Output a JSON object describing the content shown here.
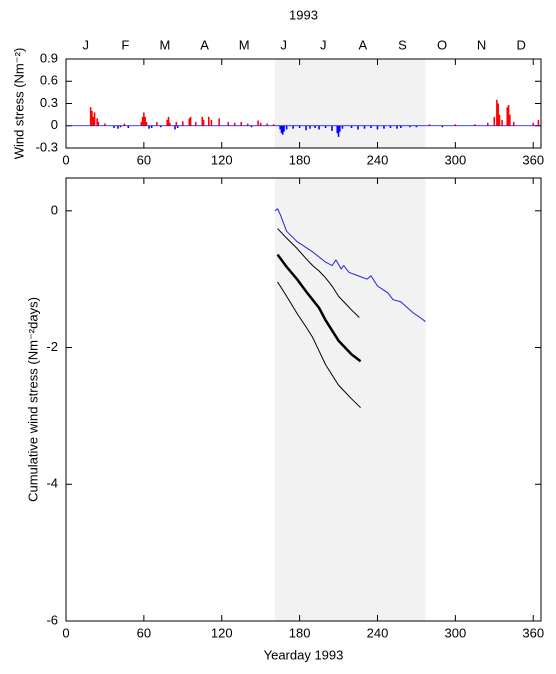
{
  "chart_data": [
    {
      "type": "bar",
      "title": "1993",
      "categories": [
        "J",
        "F",
        "M",
        "A",
        "M",
        "J",
        "J",
        "A",
        "S",
        "O",
        "N",
        "D"
      ],
      "ylabel": "Wind stress (Nm⁻²)",
      "xlim": [
        0,
        366
      ],
      "xticks": [
        0,
        60,
        120,
        180,
        240,
        300,
        360
      ],
      "ylim": [
        -0.3,
        0.9
      ],
      "yticks": [
        -0.3,
        0,
        0.3,
        0.6,
        0.9
      ],
      "highlight_x": [
        161,
        277
      ],
      "highlight_color": "#f2f2f2",
      "color_positive": "#ff0000",
      "color_negative": "#0000ff",
      "x": [
        19,
        20,
        21,
        22,
        24,
        25,
        30,
        37,
        40,
        42,
        45,
        48,
        58,
        59,
        60,
        61,
        62,
        64,
        66,
        70,
        73,
        78,
        79,
        80,
        84,
        85,
        86,
        90,
        95,
        96,
        100,
        105,
        106,
        110,
        112,
        118,
        125,
        130,
        135,
        140,
        143,
        148,
        150,
        155,
        160,
        165,
        166,
        167,
        168,
        170,
        175,
        180,
        185,
        188,
        192,
        195,
        200,
        205,
        209,
        210,
        211,
        213,
        220,
        225,
        230,
        235,
        240,
        245,
        250,
        255,
        258,
        265,
        270,
        280,
        290,
        300,
        315,
        325,
        330,
        332,
        333,
        334,
        336,
        340,
        341,
        342,
        345,
        360,
        364
      ],
      "values": [
        0.25,
        0.2,
        0.12,
        0.18,
        0.1,
        0.05,
        0.03,
        -0.03,
        -0.04,
        -0.02,
        0.03,
        -0.03,
        0.05,
        0.12,
        0.18,
        0.12,
        0.05,
        -0.04,
        -0.03,
        0.05,
        -0.02,
        0.08,
        0.12,
        0.04,
        -0.05,
        0.05,
        -0.03,
        0.06,
        0.1,
        0.12,
        0.05,
        0.12,
        0.08,
        0.12,
        0.08,
        0.1,
        0.05,
        0.04,
        0.05,
        0.03,
        -0.02,
        0.07,
        0.04,
        0.03,
        0.02,
        -0.05,
        -0.1,
        -0.12,
        -0.08,
        -0.05,
        -0.04,
        -0.03,
        -0.06,
        -0.04,
        -0.03,
        -0.05,
        -0.03,
        -0.07,
        -0.1,
        -0.15,
        -0.08,
        -0.04,
        -0.03,
        -0.05,
        -0.04,
        -0.03,
        -0.05,
        -0.04,
        -0.03,
        -0.04,
        -0.03,
        -0.02,
        -0.02,
        0.02,
        -0.02,
        0.02,
        0.02,
        0.04,
        0.12,
        0.35,
        0.3,
        0.15,
        0.08,
        0.25,
        0.28,
        0.15,
        0.05,
        0.04,
        0.08
      ]
    },
    {
      "type": "line",
      "xlabel": "Yearday 1993",
      "ylabel": "Cumulative wind stress (Nm⁻²days)",
      "xlim": [
        0,
        366
      ],
      "xticks": [
        0,
        60,
        120,
        180,
        240,
        300,
        360
      ],
      "ylim": [
        -6,
        0.48
      ],
      "yticks": [
        -6,
        -4,
        -2,
        0
      ],
      "highlight_x": [
        161,
        277
      ],
      "highlight_color": "#f2f2f2",
      "series": [
        {
          "color": "#2222dd",
          "width": 1,
          "x": [
            161,
            163,
            165,
            170,
            178,
            190,
            196,
            200,
            205,
            208,
            212,
            214,
            218,
            225,
            232,
            235,
            240,
            244,
            248,
            252,
            258,
            262,
            268,
            272,
            277
          ],
          "values": [
            0,
            0.03,
            -0.05,
            -0.3,
            -0.45,
            -0.6,
            -0.69,
            -0.75,
            -0.8,
            -0.72,
            -0.85,
            -0.8,
            -0.9,
            -0.95,
            -1.0,
            -0.95,
            -1.1,
            -1.15,
            -1.2,
            -1.3,
            -1.33,
            -1.4,
            -1.5,
            -1.55,
            -1.62
          ]
        },
        {
          "color": "#000000",
          "width": 1,
          "x": [
            163,
            170,
            178,
            185,
            190,
            195,
            200,
            205,
            210,
            215,
            220,
            226
          ],
          "values": [
            -0.26,
            -0.4,
            -0.55,
            -0.7,
            -0.8,
            -0.88,
            -0.98,
            -1.1,
            -1.25,
            -1.35,
            -1.45,
            -1.56
          ]
        },
        {
          "color": "#000000",
          "width": 2.5,
          "x": [
            163,
            170,
            178,
            185,
            190,
            195,
            200,
            205,
            210,
            215,
            220,
            227
          ],
          "values": [
            -0.64,
            -0.82,
            -1.0,
            -1.18,
            -1.3,
            -1.42,
            -1.6,
            -1.75,
            -1.9,
            -2.0,
            -2.1,
            -2.2
          ]
        },
        {
          "color": "#000000",
          "width": 1,
          "x": [
            163,
            170,
            178,
            185,
            190,
            195,
            200,
            205,
            210,
            215,
            220,
            227
          ],
          "values": [
            -1.04,
            -1.25,
            -1.5,
            -1.7,
            -1.85,
            -2.05,
            -2.25,
            -2.4,
            -2.55,
            -2.65,
            -2.75,
            -2.88
          ]
        }
      ]
    }
  ]
}
